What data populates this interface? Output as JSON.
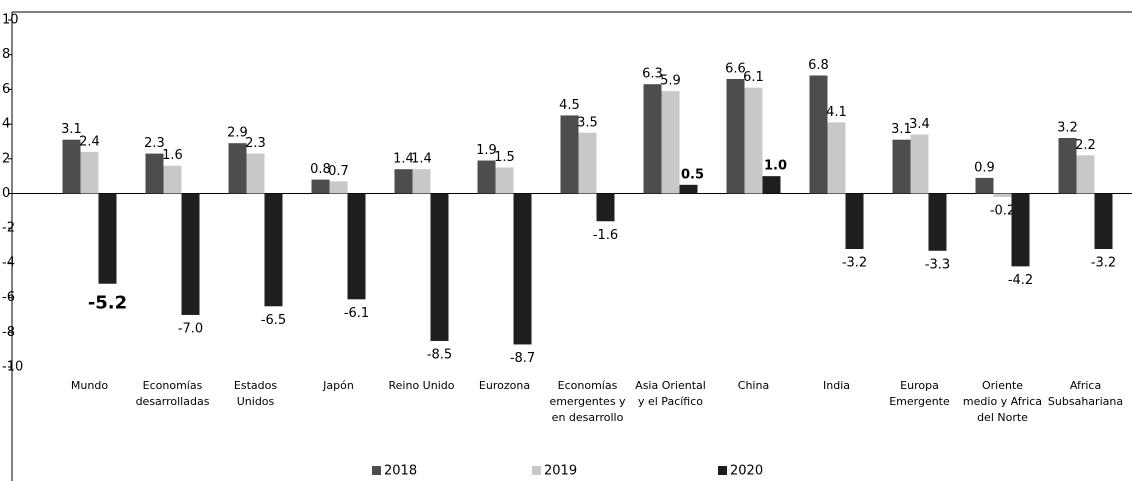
{
  "chart_data": {
    "type": "bar",
    "categories": [
      "Mundo",
      "Economías\ndesarrolladas",
      "Estados\nUnidos",
      "Japón",
      "Reino Unido",
      "Eurozona",
      "Economías\nemergentes y\nen desarrollo",
      "Asia Oriental\ny el Pacífico",
      "China",
      "India",
      "Europa\nEmergente",
      "Oriente\nmedio y Africa\ndel Norte",
      "Africa\nSubsahariana"
    ],
    "series": [
      {
        "name": "2018",
        "color": "#4d4d4d",
        "values": [
          3.1,
          2.3,
          2.9,
          0.8,
          1.4,
          1.9,
          4.5,
          6.3,
          6.6,
          6.8,
          3.1,
          0.9,
          3.2
        ],
        "value_labels": [
          "3.1",
          "2.3",
          "2.9",
          "0.8",
          "1.4",
          "1.9",
          "4.5",
          "6.3",
          "6.6",
          "6.8",
          "3.1",
          "0.9",
          "3.2"
        ]
      },
      {
        "name": "2019",
        "color": "#c8c8c8",
        "values": [
          2.4,
          1.6,
          2.3,
          0.7,
          1.4,
          1.5,
          3.5,
          5.9,
          6.1,
          4.1,
          3.4,
          -0.2,
          2.2
        ],
        "value_labels": [
          "2.4",
          "1.6",
          "2.3",
          "0.7",
          "1.4",
          "1.5",
          "3.5",
          "5.9",
          "6.1",
          "4.1",
          "3.4",
          "-0.2",
          "2.2"
        ]
      },
      {
        "name": "2020",
        "color": "#1e1e1e",
        "values": [
          -5.2,
          -7.0,
          -6.5,
          -6.1,
          -8.5,
          -8.7,
          -1.6,
          0.5,
          1.0,
          -3.2,
          -3.3,
          -4.2,
          -3.2
        ],
        "value_labels": [
          "-5.2",
          "-7.0",
          "-6.5",
          "-6.1",
          "-8.5",
          "-8.7",
          "-1.6",
          "0.5",
          "1.0",
          "-3.2",
          "-3.3",
          "-4.2",
          "-3.2"
        ]
      }
    ],
    "ylim": [
      -10,
      10
    ],
    "yticks": [
      -10,
      -8,
      -6,
      -4,
      -2,
      0,
      2,
      4,
      6,
      8,
      10
    ],
    "legend": "bottom"
  }
}
